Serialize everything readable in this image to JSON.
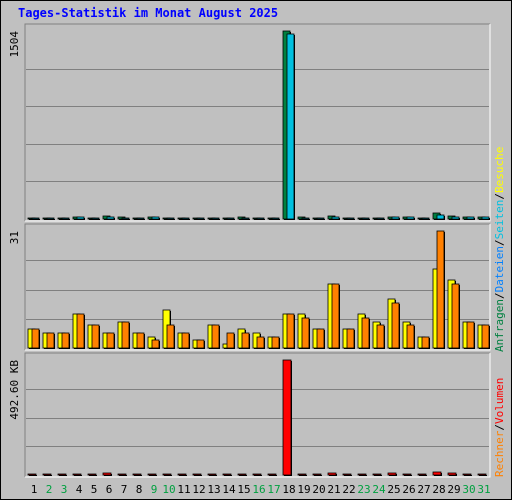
{
  "chart_data": {
    "type": "bar",
    "title": "Tages-Statistik im Monat August 2025",
    "categories": [
      "1",
      "2",
      "3",
      "4",
      "5",
      "6",
      "7",
      "8",
      "9",
      "10",
      "11",
      "12",
      "13",
      "14",
      "15",
      "16",
      "17",
      "18",
      "19",
      "20",
      "21",
      "22",
      "23",
      "24",
      "25",
      "26",
      "27",
      "28",
      "29",
      "30",
      "31"
    ],
    "weekend_days": [
      "2",
      "3",
      "9",
      "10",
      "16",
      "17",
      "23",
      "24",
      "30",
      "31"
    ],
    "panels": [
      {
        "name": "requests-files",
        "ymax_label": "1504",
        "ylim": [
          0,
          1504
        ],
        "series": [
          {
            "name": "Anfragen",
            "color": "#008040",
            "values": [
              8,
              8,
              8,
              15,
              8,
              20,
              12,
              8,
              15,
              8,
              8,
              8,
              8,
              8,
              12,
              8,
              8,
              1504,
              12,
              8,
              20,
              10,
              10,
              10,
              15,
              15,
              8,
              45,
              20,
              15,
              15
            ]
          },
          {
            "name": "Dateien",
            "color": "#00c0e0",
            "values": [
              5,
              5,
              5,
              12,
              5,
              18,
              10,
              5,
              12,
              5,
              5,
              5,
              5,
              5,
              10,
              5,
              5,
              1480,
              10,
              5,
              18,
              8,
              8,
              8,
              12,
              12,
              5,
              30,
              18,
              12,
              12
            ]
          }
        ]
      },
      {
        "name": "pages-visits-sites",
        "ymax_label": "31",
        "ylim": [
          0,
          31
        ],
        "series": [
          {
            "name": "Seiten",
            "color": "#ffff00",
            "values": [
              5,
              4,
              4,
              9,
              6,
              4,
              7,
              4,
              3,
              10,
              4,
              2,
              6,
              1,
              5,
              4,
              3,
              9,
              9,
              5,
              17,
              5,
              9,
              7,
              13,
              7,
              3,
              21,
              18,
              7,
              6
            ]
          },
          {
            "name": "Besuche",
            "color": "#ff8000",
            "values": [
              5,
              4,
              4,
              9,
              6,
              4,
              7,
              4,
              2,
              6,
              4,
              2,
              6,
              4,
              4,
              3,
              3,
              9,
              8,
              5,
              17,
              5,
              8,
              6,
              12,
              6,
              3,
              31,
              17,
              7,
              6
            ]
          }
        ]
      },
      {
        "name": "volume",
        "ymax_label": "492.60 KB",
        "ylim": [
          0,
          492.6
        ],
        "series": [
          {
            "name": "Volumen",
            "color": "#ff0000",
            "values": [
              3,
              3,
              3,
              3,
              3,
              8,
              3,
              3,
              3,
              3,
              3,
              3,
              3,
              3,
              3,
              3,
              3,
              492.6,
              6,
              3,
              7,
              3,
              3,
              3,
              7,
              3,
              3,
              12,
              8,
              3,
              3
            ]
          }
        ]
      }
    ],
    "legend_right": {
      "top": [
        {
          "text": "Anfragen",
          "color": "#008040"
        },
        {
          "text": "/",
          "color": "#000000"
        },
        {
          "text": "Dateien",
          "color": "#0080ff"
        },
        {
          "text": "/",
          "color": "#000000"
        },
        {
          "text": "Seiten",
          "color": "#00c0e0"
        },
        {
          "text": "/",
          "color": "#000000"
        },
        {
          "text": "Besuche",
          "color": "#ffff00"
        }
      ],
      "bottom": [
        {
          "text": "Rechner",
          "color": "#ff8000"
        },
        {
          "text": "/",
          "color": "#000000"
        },
        {
          "text": "Volumen",
          "color": "#ff0000"
        }
      ]
    },
    "grid": true
  }
}
